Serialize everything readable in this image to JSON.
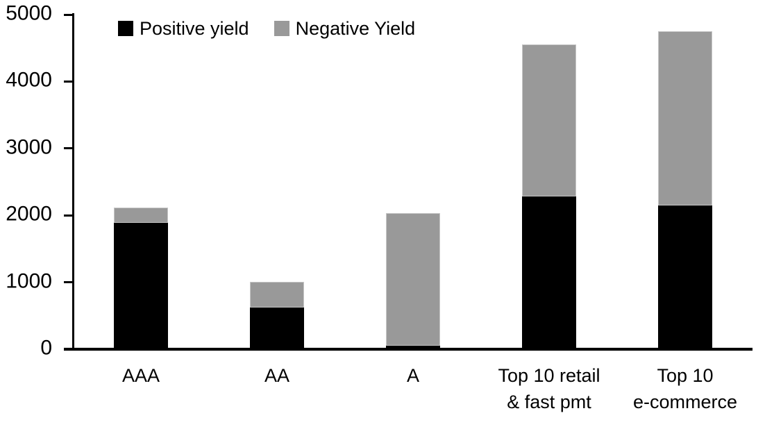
{
  "chart_data": {
    "type": "bar",
    "stacked": true,
    "title": "",
    "xlabel": "",
    "ylabel": "",
    "categories": [
      "AAA",
      "AA",
      "A",
      "Top 10 retail\n& fast pmt",
      "Top 10\ne-commerce"
    ],
    "series": [
      {
        "name": "Positive yield",
        "color": "#000000",
        "values": [
          1890,
          620,
          50,
          2280,
          2150
        ]
      },
      {
        "name": "Negative Yield",
        "color": "#999999",
        "values": [
          230,
          385,
          1980,
          2270,
          2600
        ]
      }
    ],
    "totals": [
      2120,
      1005,
      2030,
      4550,
      4750
    ],
    "ylim": [
      0,
      5000
    ],
    "yticks": [
      0,
      1000,
      2000,
      3000,
      4000,
      5000
    ],
    "ytick_labels": [
      "0",
      "1000",
      "2000",
      "3000",
      "4000",
      "5000"
    ],
    "grid": false,
    "legend_position": "top-left-inside"
  },
  "legend": {
    "items": [
      {
        "label": "Positive yield",
        "color": "#000000"
      },
      {
        "label": "Negative Yield",
        "color": "#999999"
      }
    ]
  },
  "colors": {
    "axis": "#000000",
    "text": "#000000",
    "background": "#ffffff",
    "positive_series": "#000000",
    "negative_series": "#999999"
  }
}
